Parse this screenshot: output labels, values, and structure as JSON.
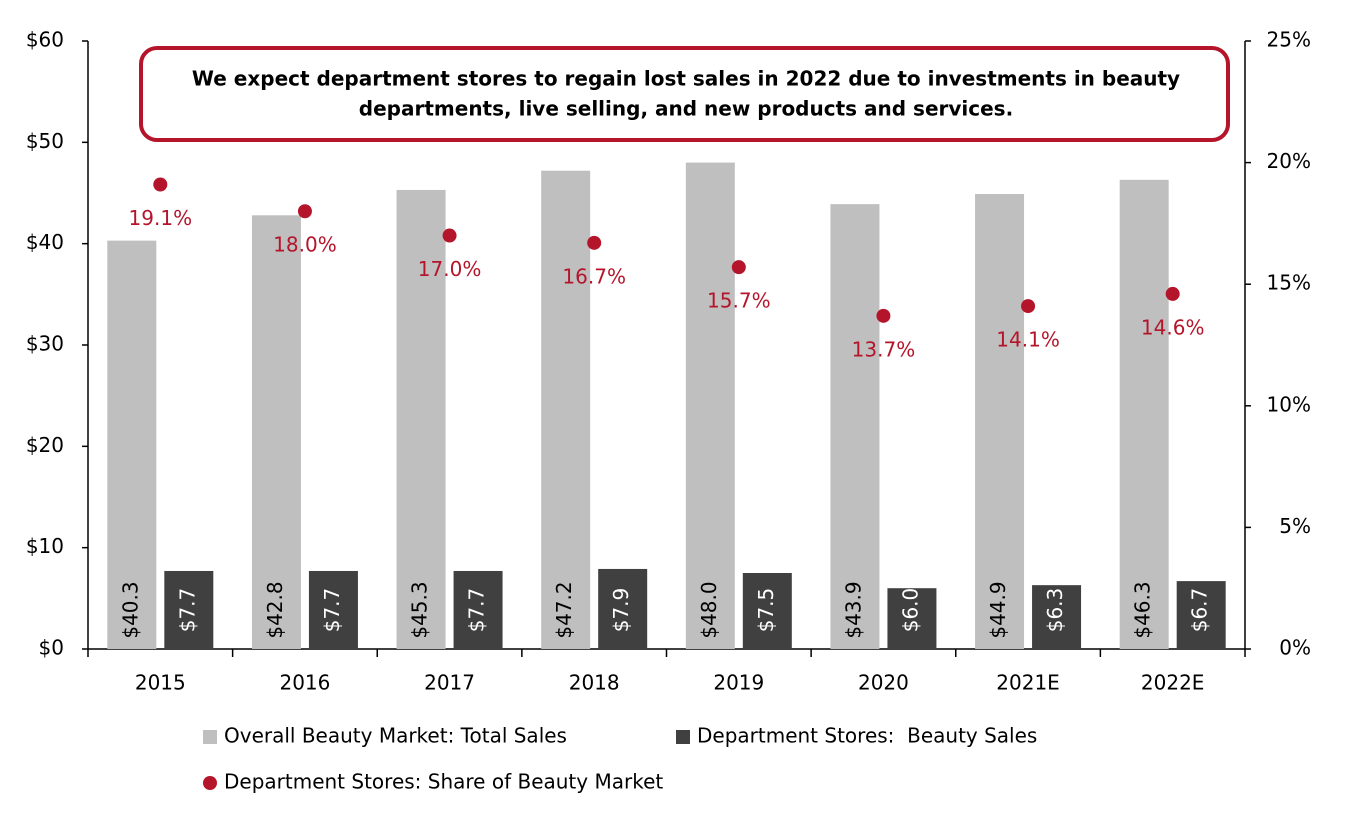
{
  "chart_data": {
    "type": "bar",
    "annotation": [
      "We expect department stores to regain lost sales in 2022 due to investments in beauty",
      "departments, live selling, and new products and services."
    ],
    "categories": [
      "2015",
      "2016",
      "2017",
      "2018",
      "2019",
      "2020",
      "2021E",
      "2022E"
    ],
    "series": [
      {
        "name": "Overall Beauty Market: Total Sales",
        "type": "bar",
        "color": "#bfbfbf",
        "values": [
          40.3,
          42.8,
          45.3,
          47.2,
          48.0,
          43.9,
          44.9,
          46.3
        ],
        "value_labels": [
          "$40.3",
          "$42.8",
          "$45.3",
          "$47.2",
          "$48.0",
          "$43.9",
          "$44.9",
          "$46.3"
        ]
      },
      {
        "name": "Department Stores:  Beauty Sales",
        "type": "bar",
        "color": "#404040",
        "values": [
          7.7,
          7.7,
          7.7,
          7.9,
          7.5,
          6.0,
          6.3,
          6.7
        ],
        "value_labels": [
          "$7.7",
          "$7.7",
          "$7.7",
          "$7.9",
          "$7.5",
          "$6.0",
          "$6.3",
          "$6.7"
        ]
      },
      {
        "name": "Department Stores: Share of Beauty Market",
        "type": "scatter",
        "axis": "y2",
        "color": "#b5152b",
        "values": [
          19.1,
          18.0,
          17.0,
          16.7,
          15.7,
          13.7,
          14.1,
          14.6
        ],
        "value_labels": [
          "19.1%",
          "18.0%",
          "17.0%",
          "16.7%",
          "15.7%",
          "13.7%",
          "14.1%",
          "14.6%"
        ]
      }
    ],
    "ylim": [
      0,
      60
    ],
    "yticks": [
      {
        "value": 0,
        "label": "$0"
      },
      {
        "value": 10,
        "label": "$10"
      },
      {
        "value": 20,
        "label": "$20"
      },
      {
        "value": 30,
        "label": "$30"
      },
      {
        "value": 40,
        "label": "$40"
      },
      {
        "value": 50,
        "label": "$50"
      },
      {
        "value": 60,
        "label": "$60"
      }
    ],
    "y2lim": [
      0,
      25
    ],
    "y2ticks": [
      {
        "value": 0,
        "label": "0%"
      },
      {
        "value": 5,
        "label": "5%"
      },
      {
        "value": 10,
        "label": "10%"
      },
      {
        "value": 15,
        "label": "15%"
      },
      {
        "value": 20,
        "label": "20%"
      },
      {
        "value": 25,
        "label": "25%"
      }
    ],
    "grid": false
  }
}
